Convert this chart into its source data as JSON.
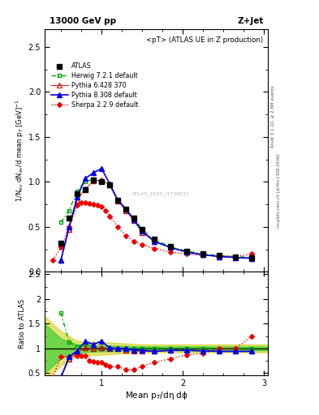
{
  "title_left": "13000 GeV pp",
  "title_right": "Z+Jet",
  "annotation": "<pT> (ATLAS UE in Z production)",
  "watermark": "ATLAS_2019_I1736531",
  "rivet_label": "Rivet 3.1.10, ≥ 2.8M events",
  "arxiv_label": "mcplots.cern.ch [arXiv:1306.3436]",
  "ylabel_main": "1/N$_{ev}$ dN$_{ev}$/d mean p$_T$ [GeV]$^{-1}$",
  "ylabel_ratio": "Ratio to ATLAS",
  "xlabel": "Mean p$_{T}$/dη dϕ",
  "xlim": [
    0.3,
    3.05
  ],
  "ylim_main": [
    0.0,
    2.7
  ],
  "ylim_ratio": [
    0.45,
    2.55
  ],
  "atlas_x": [
    0.5,
    0.6,
    0.7,
    0.8,
    0.9,
    1.0,
    1.1,
    1.2,
    1.3,
    1.4,
    1.5,
    1.65,
    1.85,
    2.05,
    2.25,
    2.45,
    2.65,
    2.85
  ],
  "atlas_y": [
    0.32,
    0.6,
    0.87,
    0.91,
    1.02,
    1.0,
    0.97,
    0.8,
    0.7,
    0.6,
    0.47,
    0.36,
    0.28,
    0.23,
    0.2,
    0.18,
    0.17,
    0.16
  ],
  "atlas_err": [
    0.02,
    0.02,
    0.02,
    0.02,
    0.02,
    0.02,
    0.02,
    0.02,
    0.02,
    0.02,
    0.02,
    0.01,
    0.01,
    0.01,
    0.01,
    0.01,
    0.01,
    0.01
  ],
  "herwig_x": [
    0.5,
    0.6,
    0.7,
    0.8,
    0.9,
    1.0,
    1.1,
    1.2,
    1.3,
    1.4,
    1.5,
    1.65,
    1.85,
    2.05,
    2.25,
    2.45,
    2.65,
    2.85
  ],
  "herwig_y": [
    0.55,
    0.68,
    0.9,
    1.0,
    1.03,
    1.0,
    0.96,
    0.8,
    0.7,
    0.6,
    0.47,
    0.36,
    0.28,
    0.23,
    0.2,
    0.18,
    0.17,
    0.16
  ],
  "pythia6_x": [
    0.5,
    0.6,
    0.7,
    0.8,
    0.9,
    1.0,
    1.1,
    1.2,
    1.3,
    1.4,
    1.5,
    1.65,
    1.85,
    2.05,
    2.25,
    2.45,
    2.65,
    2.85
  ],
  "pythia6_y": [
    0.13,
    0.47,
    0.8,
    0.92,
    1.01,
    1.02,
    0.97,
    0.79,
    0.68,
    0.57,
    0.44,
    0.34,
    0.27,
    0.22,
    0.19,
    0.17,
    0.16,
    0.15
  ],
  "pythia8_x": [
    0.5,
    0.6,
    0.7,
    0.8,
    0.9,
    1.0,
    1.1,
    1.2,
    1.3,
    1.4,
    1.5,
    1.65,
    1.85,
    2.05,
    2.25,
    2.45,
    2.65,
    2.85
  ],
  "pythia8_y": [
    0.13,
    0.5,
    0.83,
    1.04,
    1.1,
    1.15,
    0.98,
    0.8,
    0.7,
    0.58,
    0.45,
    0.34,
    0.27,
    0.22,
    0.19,
    0.17,
    0.16,
    0.15
  ],
  "sherpa_x": [
    0.4,
    0.5,
    0.6,
    0.7,
    0.75,
    0.8,
    0.85,
    0.9,
    0.95,
    1.0,
    1.05,
    1.1,
    1.2,
    1.3,
    1.4,
    1.5,
    1.65,
    1.85,
    2.05,
    2.25,
    2.45,
    2.65,
    2.85
  ],
  "sherpa_y": [
    0.13,
    0.27,
    0.5,
    0.74,
    0.77,
    0.77,
    0.76,
    0.75,
    0.74,
    0.72,
    0.68,
    0.62,
    0.5,
    0.4,
    0.34,
    0.3,
    0.26,
    0.22,
    0.2,
    0.18,
    0.18,
    0.17,
    0.2
  ],
  "color_atlas": "#000000",
  "color_herwig": "#00aa00",
  "color_pythia6": "#cc0000",
  "color_pythia8": "#0000ee",
  "color_sherpa": "#ee0000",
  "color_sys_inner": "#33cc33",
  "color_sys_outer": "#cccc00",
  "ratio_x": [
    0.5,
    0.6,
    0.7,
    0.8,
    0.9,
    1.0,
    1.1,
    1.2,
    1.3,
    1.4,
    1.5,
    1.65,
    1.85,
    2.05,
    2.25,
    2.45,
    2.65,
    2.85
  ],
  "ratio_herwig_y": [
    1.72,
    1.13,
    1.03,
    1.1,
    1.01,
    1.0,
    0.99,
    1.0,
    1.0,
    1.0,
    1.0,
    1.0,
    1.0,
    1.0,
    1.0,
    1.0,
    1.0,
    1.0
  ],
  "ratio_pythia6_y": [
    0.41,
    0.78,
    0.92,
    1.01,
    0.99,
    1.02,
    1.0,
    0.99,
    0.97,
    0.95,
    0.94,
    0.94,
    0.96,
    0.96,
    0.95,
    0.94,
    0.94,
    0.94
  ],
  "ratio_pythia8_y": [
    0.41,
    0.83,
    0.95,
    1.14,
    1.08,
    1.15,
    1.01,
    1.0,
    1.0,
    0.97,
    0.96,
    0.94,
    0.96,
    0.96,
    0.95,
    0.94,
    0.94,
    0.94
  ],
  "ratio_sherpa_x": [
    0.4,
    0.5,
    0.6,
    0.7,
    0.75,
    0.8,
    0.85,
    0.9,
    0.95,
    1.0,
    1.05,
    1.1,
    1.2,
    1.3,
    1.4,
    1.5,
    1.65,
    1.85,
    2.05,
    2.25,
    2.45,
    2.65,
    2.85
  ],
  "ratio_sherpa_y": [
    0.41,
    0.84,
    0.83,
    0.85,
    0.85,
    0.85,
    0.75,
    0.73,
    0.72,
    0.72,
    0.67,
    0.64,
    0.63,
    0.57,
    0.57,
    0.64,
    0.72,
    0.79,
    0.87,
    0.9,
    1.0,
    1.0,
    1.25
  ],
  "sys_x": [
    0.3,
    0.5,
    0.7,
    1.0,
    1.5,
    2.0,
    2.5,
    3.05
  ],
  "sys_inner_lo": [
    0.5,
    0.8,
    0.92,
    0.94,
    0.96,
    0.96,
    0.96,
    0.96
  ],
  "sys_inner_hi": [
    1.5,
    1.2,
    1.08,
    1.06,
    1.04,
    1.04,
    1.04,
    1.04
  ],
  "sys_outer_lo": [
    0.35,
    0.65,
    0.85,
    0.87,
    0.92,
    0.92,
    0.92,
    0.92
  ],
  "sys_outer_hi": [
    1.65,
    1.35,
    1.15,
    1.13,
    1.08,
    1.08,
    1.08,
    1.08
  ]
}
